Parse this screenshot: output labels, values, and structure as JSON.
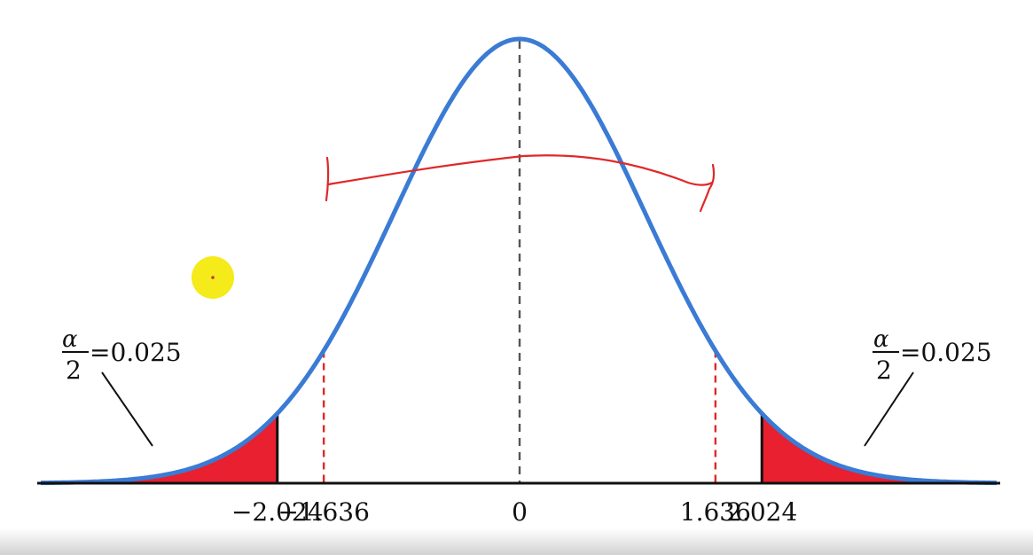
{
  "figure": {
    "mean_label": "0",
    "ticks": [
      {
        "value": -2.024,
        "label": "−2.024",
        "role": "critical"
      },
      {
        "value": -1.636,
        "label": "−1.636",
        "role": "marked"
      },
      {
        "value": 0,
        "label": "0",
        "role": "mean"
      },
      {
        "value": 1.636,
        "label": "1.636",
        "role": "marked"
      },
      {
        "value": 2.024,
        "label": "2.024",
        "role": "critical"
      }
    ],
    "left_tail": {
      "numerator": "α",
      "denominator": "2",
      "value_text": "=0.025"
    },
    "right_tail": {
      "numerator": "α",
      "denominator": "2",
      "value_text": "=0.025"
    }
  },
  "colors": {
    "curve": "#3a7bd5",
    "tail_fill": "#e8202f",
    "marked_lines": "#e02828",
    "mean_line": "#555555",
    "axis": "#111111",
    "cursor_highlight": "#f5ea1a"
  },
  "overlays": {
    "cursor_highlight": "yellow-circle",
    "pen_annotation": "red-bracket"
  }
}
